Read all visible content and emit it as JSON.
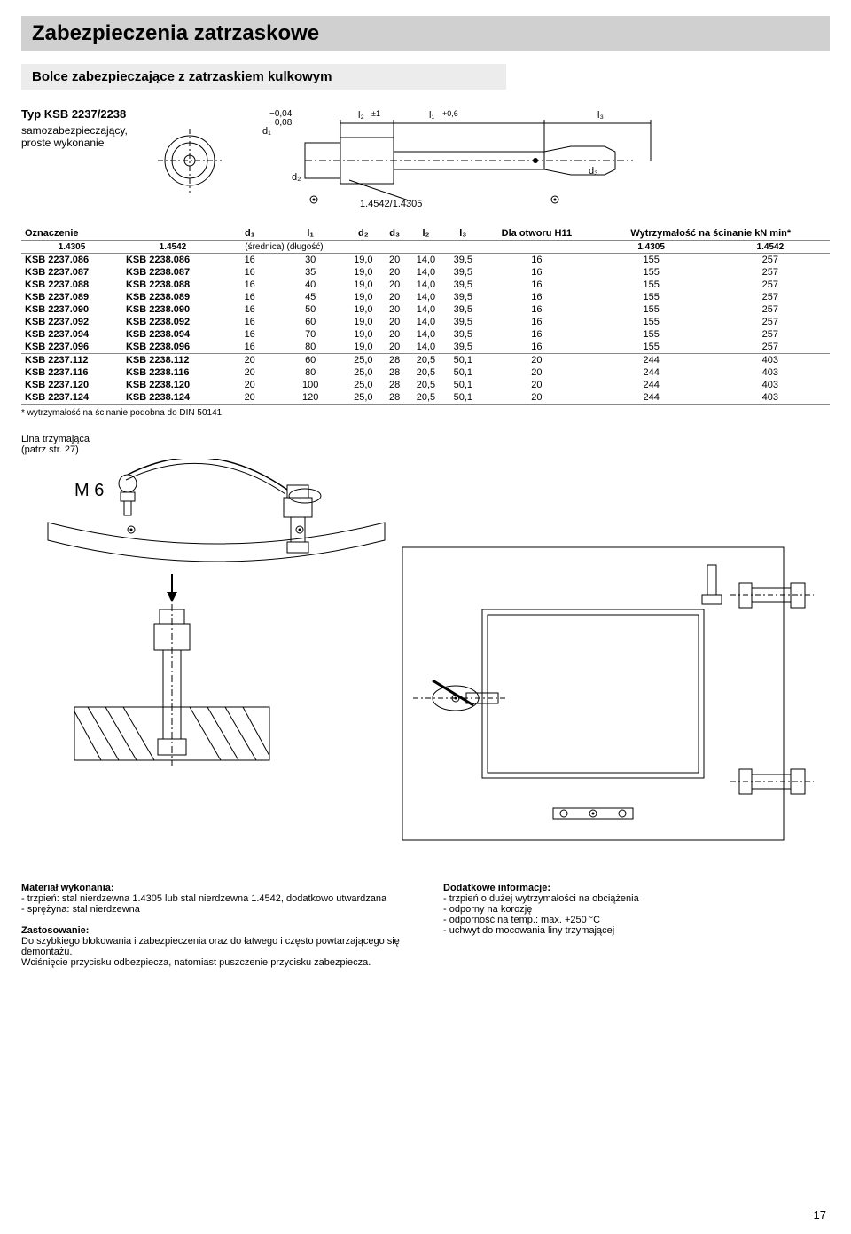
{
  "title": "Zabezpieczenia zatrzaskowe",
  "subtitle": "Bolce zabezpieczające z zatrzaskiem kulkowym",
  "type_line1": "Typ KSB 2237/2238",
  "type_line2": "samozabezpieczający,",
  "type_line3": "proste wykonanie",
  "tech_labels": {
    "d1_tol": "−0,04\n−0,08",
    "l2_tol": "±1",
    "l1_tol": "+0,6",
    "d1": "d₁",
    "d2": "d₂",
    "d3": "d₃",
    "l1": "l₁",
    "l2": "l₂",
    "l3": "l₃",
    "mat": "1.4542/1.4305"
  },
  "table": {
    "headers": {
      "ozn": "Oznaczenie",
      "d1": "d₁",
      "l1": "l₁",
      "d2": "d₂",
      "d3": "d₃",
      "l2": "l₂",
      "l3": "l₃",
      "dla": "Dla otworu H11",
      "wytrz": "Wytrzymałość na ścinanie kN min*"
    },
    "sub_left1": "1.4305",
    "sub_left2": "1.4542",
    "sub_mid": "(średnica) (długość)",
    "sub_right1": "1.4305",
    "sub_right2": "1.4542",
    "rows_a": [
      [
        "KSB 2237.086",
        "KSB 2238.086",
        "16",
        "30",
        "19,0",
        "20",
        "14,0",
        "39,5",
        "16",
        "155",
        "257"
      ],
      [
        "KSB 2237.087",
        "KSB 2238.087",
        "16",
        "35",
        "19,0",
        "20",
        "14,0",
        "39,5",
        "16",
        "155",
        "257"
      ],
      [
        "KSB 2237.088",
        "KSB 2238.088",
        "16",
        "40",
        "19,0",
        "20",
        "14,0",
        "39,5",
        "16",
        "155",
        "257"
      ],
      [
        "KSB 2237.089",
        "KSB 2238.089",
        "16",
        "45",
        "19,0",
        "20",
        "14,0",
        "39,5",
        "16",
        "155",
        "257"
      ],
      [
        "KSB 2237.090",
        "KSB 2238.090",
        "16",
        "50",
        "19,0",
        "20",
        "14,0",
        "39,5",
        "16",
        "155",
        "257"
      ],
      [
        "KSB 2237.092",
        "KSB 2238.092",
        "16",
        "60",
        "19,0",
        "20",
        "14,0",
        "39,5",
        "16",
        "155",
        "257"
      ],
      [
        "KSB 2237.094",
        "KSB 2238.094",
        "16",
        "70",
        "19,0",
        "20",
        "14,0",
        "39,5",
        "16",
        "155",
        "257"
      ],
      [
        "KSB 2237.096",
        "KSB 2238.096",
        "16",
        "80",
        "19,0",
        "20",
        "14,0",
        "39,5",
        "16",
        "155",
        "257"
      ]
    ],
    "rows_b": [
      [
        "KSB 2237.112",
        "KSB 2238.112",
        "20",
        "60",
        "25,0",
        "28",
        "20,5",
        "50,1",
        "20",
        "244",
        "403"
      ],
      [
        "KSB 2237.116",
        "KSB 2238.116",
        "20",
        "80",
        "25,0",
        "28",
        "20,5",
        "50,1",
        "20",
        "244",
        "403"
      ],
      [
        "KSB 2237.120",
        "KSB 2238.120",
        "20",
        "100",
        "25,0",
        "28",
        "20,5",
        "50,1",
        "20",
        "244",
        "403"
      ],
      [
        "KSB 2237.124",
        "KSB 2238.124",
        "20",
        "120",
        "25,0",
        "28",
        "20,5",
        "50,1",
        "20",
        "244",
        "403"
      ]
    ]
  },
  "footnote": "* wytrzymałość na ścinanie podobna do DIN 50141",
  "lina1": "Lina trzymająca",
  "lina2": "(patrz str. 27)",
  "lina_m6": "M 6",
  "bottom": {
    "mat_h": "Materiał wykonania:",
    "mat_l1": "- trzpień: stal nierdzewna 1.4305 lub stal nierdzewna 1.4542, dodatkowo utwardzana",
    "mat_l2": "- sprężyna: stal nierdzewna",
    "zast_h": "Zastosowanie:",
    "zast_l1": "Do szybkiego blokowania i zabezpieczenia oraz do łatwego i często powtarzającego się demontażu.",
    "zast_l2": "Wciśnięcie przycisku odbezpiecza, natomiast puszczenie przycisku zabezpiecza.",
    "dod_h": "Dodatkowe informacje:",
    "dod_l1": "- trzpień o dużej wytrzymałości na obciążenia",
    "dod_l2": "- odporny na korozję",
    "dod_l3": "- odporność na temp.: max. +250 °C",
    "dod_l4": "- uchwyt do mocowania liny trzymającej"
  },
  "pagenum": "17",
  "colors": {
    "title_bg": "#d0d0d0",
    "sub_bg": "#ececec",
    "line": "#000000"
  }
}
